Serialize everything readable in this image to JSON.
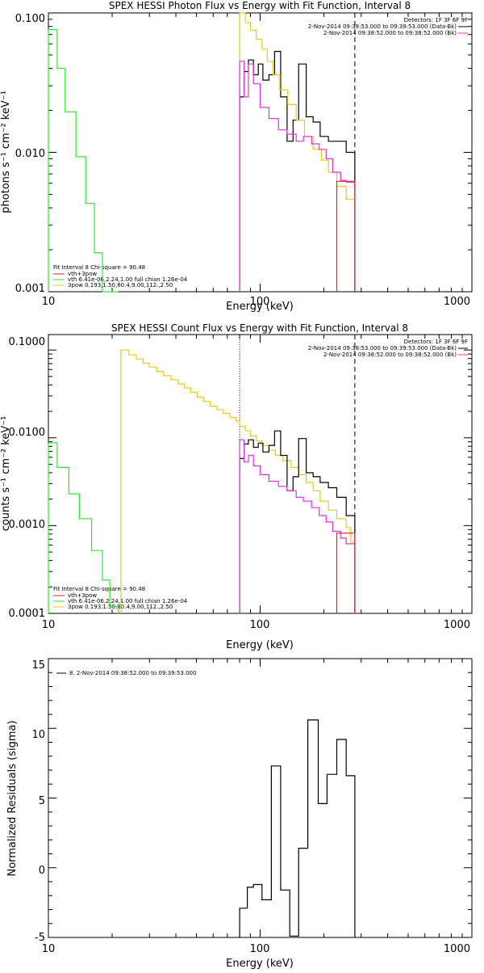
{
  "colors": {
    "data": "#000000",
    "total": "#e8231f",
    "vth": "#2ee82e",
    "bpow": "#e8c81f",
    "bk": "#e030e0"
  },
  "chart_data": [
    {
      "type": "line",
      "title": "SPEX HESSI Photon Flux vs Energy with Fit Function, Interval 8",
      "xlabel": "Energy (keV)",
      "ylabel": "photons s⁻¹ cm⁻² keV⁻¹",
      "xscale": "log",
      "yscale": "log",
      "xlim": [
        10,
        1000
      ],
      "ylim": [
        0.001,
        0.1
      ],
      "xticks": [
        "10",
        "100",
        "1000"
      ],
      "yticks": [
        "0.001",
        "0.010",
        "0.100"
      ],
      "vlines": {
        "dotted": 80,
        "dashed": 280
      },
      "legend_top": [
        "Detectors: 1F 3F 6F 9F",
        "2-Nov-2014 09:38:53.000 to 09:39:53.000 (Data-Bk)",
        "2-Nov-2014 09:38:52.000 to 09:38:52.000 (Bk)"
      ],
      "legend_bottom": [
        "Fit Interval 8   Chi-square = 90.48",
        "vth+3pow",
        "vth 6.41e-06,2.24,1.00  full chian 1.26e-04",
        "3pow 0.193,1.50,80.4,9.00,112.,2.50"
      ],
      "series": [
        {
          "key": "vth",
          "steps": [
            [
              10,
              0.076
            ],
            [
              11,
              0.04
            ],
            [
              12,
              0.0195
            ],
            [
              13.5,
              0.0093
            ],
            [
              15,
              0.0043
            ],
            [
              16.5,
              0.0019
            ],
            [
              18,
              0.00087
            ],
            [
              19.5,
              0.00038
            ]
          ]
        },
        {
          "key": "data",
          "steps": [
            [
              80,
              0.025
            ],
            [
              84,
              0.038
            ],
            [
              88,
              0.046
            ],
            [
              93,
              0.036
            ],
            [
              98,
              0.043
            ],
            [
              103,
              0.033
            ],
            [
              110,
              0.036
            ],
            [
              117,
              0.053
            ],
            [
              125,
              0.025
            ],
            [
              134,
              0.012
            ],
            [
              143,
              0.017
            ],
            [
              152,
              0.043
            ],
            [
              165,
              0.018
            ],
            [
              178,
              0.0165
            ],
            [
              192,
              0.013
            ],
            [
              210,
              0.012
            ],
            [
              230,
              0.012
            ],
            [
              255,
              0.01
            ]
          ],
          "end": 280
        },
        {
          "key": "bpow",
          "steps": [
            [
              80,
              0.1
            ],
            [
              85,
              0.085
            ],
            [
              90,
              0.075
            ],
            [
              96,
              0.065
            ],
            [
              102,
              0.055
            ],
            [
              108,
              0.045
            ],
            [
              115,
              0.036
            ],
            [
              124,
              0.028
            ],
            [
              135,
              0.022
            ],
            [
              148,
              0.017
            ],
            [
              162,
              0.013
            ],
            [
              178,
              0.0105
            ],
            [
              195,
              0.0088
            ],
            [
              210,
              0.0072
            ],
            [
              230,
              0.0057
            ],
            [
              255,
              0.0046
            ]
          ],
          "end": 280
        },
        {
          "key": "bk",
          "steps": [
            [
              80,
              0.045
            ],
            [
              84,
              0.025
            ],
            [
              88,
              0.043
            ],
            [
              93,
              0.031
            ],
            [
              100,
              0.021
            ],
            [
              110,
              0.0175
            ],
            [
              122,
              0.0145
            ],
            [
              134,
              0.0135
            ],
            [
              148,
              0.012
            ],
            [
              160,
              0.013
            ],
            [
              175,
              0.0115
            ],
            [
              190,
              0.0105
            ],
            [
              205,
              0.009
            ],
            [
              220,
              0.0072
            ],
            [
              240,
              0.0063
            ],
            [
              255,
              0.0061
            ]
          ],
          "end": 280
        },
        {
          "key": "total",
          "steps": [
            [
              230,
              0.0062
            ],
            [
              255,
              0.0062
            ]
          ],
          "end": 280
        }
      ]
    },
    {
      "type": "line",
      "title": "SPEX HESSI Count Flux vs Energy with Fit Function, Interval 8",
      "xlabel": "Energy (keV)",
      "ylabel": "counts s⁻¹ cm⁻² keV⁻¹",
      "xscale": "log",
      "yscale": "log",
      "xlim": [
        10,
        1000
      ],
      "ylim": [
        0.0001,
        0.15
      ],
      "xticks": [
        "10",
        "100",
        "1000"
      ],
      "yticks": [
        "0.0001",
        "0.0010",
        "0.0100",
        "0.1000"
      ],
      "vlines": {
        "dotted": 80,
        "dashed": 280
      },
      "legend_top": [
        "Detectors: 1F 3F 6F 9F",
        "2-Nov-2014 09:38:53.000 to 09:39:53.000 (Data-Bk)",
        "2-Nov-2014 09:38:52.000 to 09:38:52.000 (Bk)"
      ],
      "legend_bottom": [
        "Fit Interval 8   Chi-square = 90.48",
        "vth+3pow",
        "vth 6.41e-06,2.24,1.00  full chian 1.26e-04",
        "3pow 0.193,1.50,80.4,9.00,112.,2.50"
      ],
      "series": [
        {
          "key": "vth",
          "steps": [
            [
              10,
              0.0088
            ],
            [
              11,
              0.0046
            ],
            [
              12.5,
              0.0023
            ],
            [
              14,
              0.0012
            ],
            [
              16,
              0.00052
            ],
            [
              18,
              0.00024
            ],
            [
              19.5,
              0.00012
            ]
          ]
        },
        {
          "key": "bpow",
          "steps": [
            [
              22,
              0.1
            ],
            [
              24,
              0.088
            ],
            [
              26,
              0.079
            ],
            [
              28,
              0.071
            ],
            [
              30,
              0.064
            ],
            [
              32.5,
              0.057
            ],
            [
              35,
              0.051
            ],
            [
              38,
              0.046
            ],
            [
              41,
              0.041
            ],
            [
              44,
              0.037
            ],
            [
              47,
              0.033
            ],
            [
              50.5,
              0.029
            ],
            [
              54,
              0.026
            ],
            [
              58,
              0.023
            ],
            [
              62.5,
              0.021
            ],
            [
              67,
              0.019
            ],
            [
              72,
              0.017
            ],
            [
              77,
              0.0155
            ],
            [
              80,
              0.0135
            ],
            [
              85,
              0.012
            ],
            [
              90,
              0.0105
            ],
            [
              96,
              0.0092
            ],
            [
              102,
              0.0082
            ],
            [
              110,
              0.0072
            ],
            [
              118,
              0.0063
            ],
            [
              128,
              0.0055
            ],
            [
              140,
              0.0046
            ],
            [
              152,
              0.0038
            ],
            [
              165,
              0.0031
            ],
            [
              178,
              0.0025
            ],
            [
              192,
              0.0019
            ],
            [
              210,
              0.0015
            ],
            [
              230,
              0.0012
            ],
            [
              255,
              0.00095
            ],
            [
              268,
              0.00065
            ]
          ],
          "end": 280
        },
        {
          "key": "data",
          "steps": [
            [
              80,
              0.0058
            ],
            [
              84,
              0.0085
            ],
            [
              88,
              0.0095
            ],
            [
              93,
              0.0078
            ],
            [
              98,
              0.0087
            ],
            [
              103,
              0.0069
            ],
            [
              110,
              0.0082
            ],
            [
              117,
              0.012
            ],
            [
              125,
              0.0063
            ],
            [
              134,
              0.0025
            ],
            [
              143,
              0.0036
            ],
            [
              152,
              0.0098
            ],
            [
              165,
              0.004
            ],
            [
              178,
              0.0036
            ],
            [
              192,
              0.0031
            ],
            [
              210,
              0.0027
            ],
            [
              230,
              0.0021
            ],
            [
              255,
              0.0013
            ]
          ],
          "end": 280
        },
        {
          "key": "bk",
          "steps": [
            [
              80,
              0.0095
            ],
            [
              84,
              0.0053
            ],
            [
              88,
              0.0063
            ],
            [
              93,
              0.0048
            ],
            [
              100,
              0.0038
            ],
            [
              110,
              0.0032
            ],
            [
              122,
              0.0028
            ],
            [
              134,
              0.0025
            ],
            [
              148,
              0.0021
            ],
            [
              160,
              0.0019
            ],
            [
              175,
              0.0016
            ],
            [
              190,
              0.0013
            ],
            [
              205,
              0.0011
            ],
            [
              220,
              0.00086
            ],
            [
              240,
              0.00072
            ],
            [
              255,
              0.00062
            ]
          ],
          "end": 280
        },
        {
          "key": "total",
          "steps": [
            [
              230,
              0.00082
            ],
            [
              255,
              0.00082
            ]
          ],
          "end": 280
        }
      ]
    },
    {
      "type": "line",
      "title": "",
      "xlabel": "Energy (keV)",
      "ylabel": "Normalized Residuals (sigma)",
      "xscale": "log",
      "yscale": "linear",
      "xlim": [
        10,
        1000
      ],
      "ylim": [
        -5,
        15
      ],
      "xticks": [
        "10",
        "100",
        "1000"
      ],
      "yticks": [
        "-5",
        "0",
        "5",
        "10",
        "15"
      ],
      "legend_top": [
        "8.  2-Nov-2014 09:38:52.000 to 09:39:53.000"
      ],
      "series": [
        {
          "key": "data",
          "steps": [
            [
              80,
              -2.9
            ],
            [
              87,
              -1.4
            ],
            [
              93,
              -1.2
            ],
            [
              102,
              -2.3
            ],
            [
              113,
              7.3
            ],
            [
              125,
              -1.6
            ],
            [
              138,
              -4.9
            ],
            [
              152,
              1.4
            ],
            [
              168,
              10.6
            ],
            [
              188,
              4.6
            ],
            [
              207,
              6.7
            ],
            [
              230,
              9.2
            ],
            [
              255,
              6.6
            ]
          ],
          "end": 280
        }
      ]
    }
  ]
}
